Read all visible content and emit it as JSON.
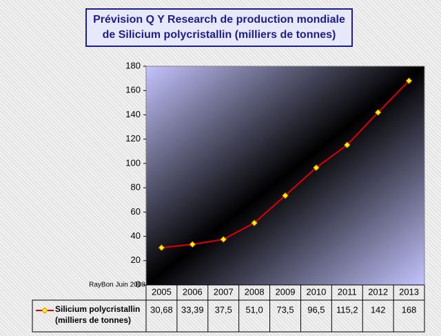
{
  "chart_data": {
    "type": "line",
    "title": "Prévision Q Y Research de production mondiale de Silicium polycristallin (milliers de tonnes)",
    "annotation": "RayBon Juin 2008",
    "categories": [
      "2005",
      "2006",
      "2007",
      "2008",
      "2009",
      "2010",
      "2011",
      "2012",
      "2013"
    ],
    "series": [
      {
        "name": "Silicium polycristallin (milliers de tonnes)",
        "color": "#e00000",
        "marker_color": "#ffff00",
        "values": [
          30.68,
          33.39,
          37.5,
          51.0,
          73.5,
          96.5,
          115.2,
          142,
          168
        ],
        "value_labels": [
          "30,68",
          "33,39",
          "37,5",
          "51,0",
          "73,5",
          "96,5",
          "115,2",
          "142",
          "168"
        ]
      }
    ],
    "ylim": [
      0,
      180
    ],
    "yticks": [
      0,
      20,
      40,
      60,
      80,
      100,
      120,
      140,
      160,
      180
    ]
  }
}
